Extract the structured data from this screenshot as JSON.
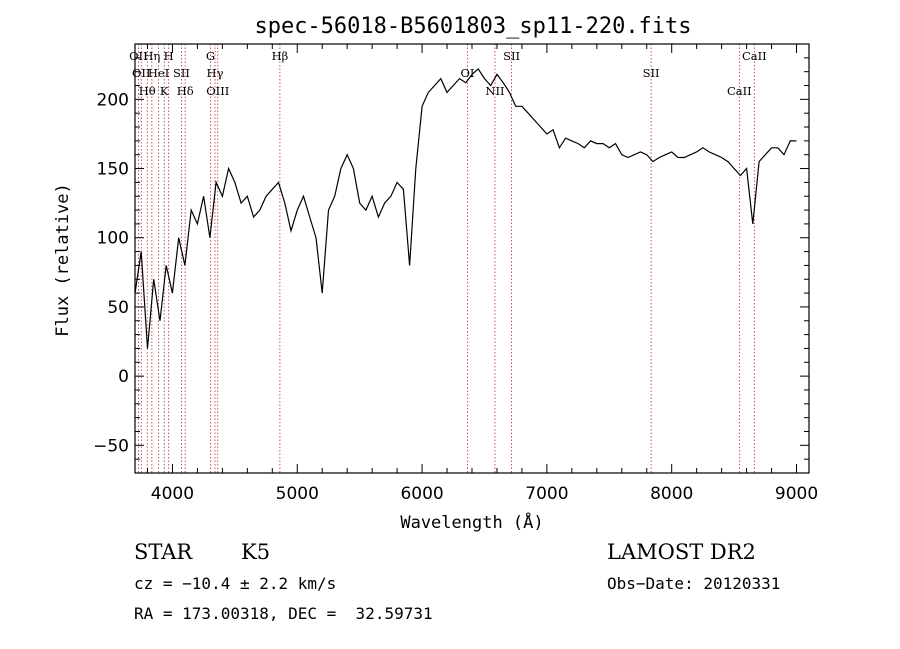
{
  "chart_data": {
    "type": "line",
    "title": "spec-56018-B5601803_sp11-220.fits",
    "xlabel": "Wavelength (Å)",
    "ylabel": "Flux (relative)",
    "xlim": [
      3700,
      9100
    ],
    "ylim": [
      -70,
      240
    ],
    "xticks": [
      4000,
      5000,
      6000,
      7000,
      8000,
      9000
    ],
    "yticks": [
      -50,
      0,
      50,
      100,
      150,
      200
    ],
    "grid": false,
    "series": [
      {
        "x": [
          3700,
          3750,
          3800,
          3850,
          3900,
          3950,
          4000,
          4050,
          4100,
          4150,
          4200,
          4250,
          4300,
          4350,
          4400,
          4450,
          4500,
          4550,
          4600,
          4650,
          4700,
          4750,
          4800,
          4850,
          4900,
          4950,
          5000,
          5050,
          5100,
          5150,
          5200,
          5250,
          5300,
          5350,
          5400,
          5450,
          5500,
          5550,
          5600,
          5650,
          5700,
          5750,
          5800,
          5850,
          5900,
          5950,
          6000,
          6050,
          6100,
          6150,
          6200,
          6250,
          6300,
          6350,
          6400,
          6450,
          6500,
          6550,
          6600,
          6650,
          6700,
          6750,
          6800,
          6850,
          6900,
          6950,
          7000,
          7050,
          7100,
          7150,
          7200,
          7250,
          7300,
          7350,
          7400,
          7450,
          7500,
          7550,
          7600,
          7650,
          7700,
          7750,
          7800,
          7850,
          7900,
          7950,
          8000,
          8050,
          8100,
          8150,
          8200,
          8250,
          8300,
          8350,
          8400,
          8450,
          8500,
          8550,
          8600,
          8650,
          8700,
          8750,
          8800,
          8850,
          8900,
          8950,
          9000
        ],
        "y": [
          60,
          90,
          20,
          70,
          40,
          80,
          60,
          100,
          80,
          120,
          110,
          130,
          100,
          140,
          130,
          150,
          140,
          125,
          130,
          115,
          120,
          130,
          135,
          140,
          125,
          105,
          120,
          130,
          115,
          100,
          60,
          120,
          130,
          150,
          160,
          150,
          125,
          120,
          130,
          115,
          125,
          130,
          140,
          135,
          80,
          150,
          195,
          205,
          210,
          215,
          205,
          210,
          215,
          212,
          218,
          222,
          215,
          210,
          218,
          212,
          205,
          195,
          195,
          190,
          185,
          180,
          175,
          178,
          165,
          172,
          170,
          168,
          165,
          170,
          168,
          168,
          165,
          168,
          160,
          158,
          160,
          162,
          160,
          155,
          158,
          160,
          162,
          158,
          158,
          160,
          162,
          165,
          162,
          160,
          158,
          155,
          150,
          145,
          150,
          110,
          155,
          160,
          165,
          165,
          160,
          170,
          170
        ]
      }
    ],
    "lines": [
      {
        "wavelength": 3727,
        "label": "OII"
      },
      {
        "wavelength": 3750,
        "label": "OII"
      },
      {
        "wavelength": 3798,
        "label": "Hθ"
      },
      {
        "wavelength": 3835,
        "label": "Hη"
      },
      {
        "wavelength": 3889,
        "label": "HeI"
      },
      {
        "wavelength": 3934,
        "label": "K"
      },
      {
        "wavelength": 3970,
        "label": "H"
      },
      {
        "wavelength": 4072,
        "label": "SII"
      },
      {
        "wavelength": 4102,
        "label": "Hδ"
      },
      {
        "wavelength": 4305,
        "label": "G"
      },
      {
        "wavelength": 4341,
        "label": "Hγ"
      },
      {
        "wavelength": 4363,
        "label": "OIII"
      },
      {
        "wavelength": 4861,
        "label": "Hβ"
      },
      {
        "wavelength": 6364,
        "label": "OI"
      },
      {
        "wavelength": 6584,
        "label": "NII"
      },
      {
        "wavelength": 6717,
        "label": "SII"
      },
      {
        "wavelength": 7835,
        "label": "SII"
      },
      {
        "wavelength": 8542,
        "label": "CaII"
      },
      {
        "wavelength": 8662,
        "label": "CaII"
      }
    ]
  },
  "info": {
    "class_label": "STAR",
    "subclass_label": "K5",
    "survey": "LAMOST DR2",
    "cz": "cz = −10.4 ± 2.2 km/s",
    "obs_date": "Obs−Date: 20120331",
    "coords": "RA = 173.00318, DEC =  32.59731"
  },
  "colors": {
    "line_marker": "#b03030",
    "spectrum": "#000000"
  }
}
